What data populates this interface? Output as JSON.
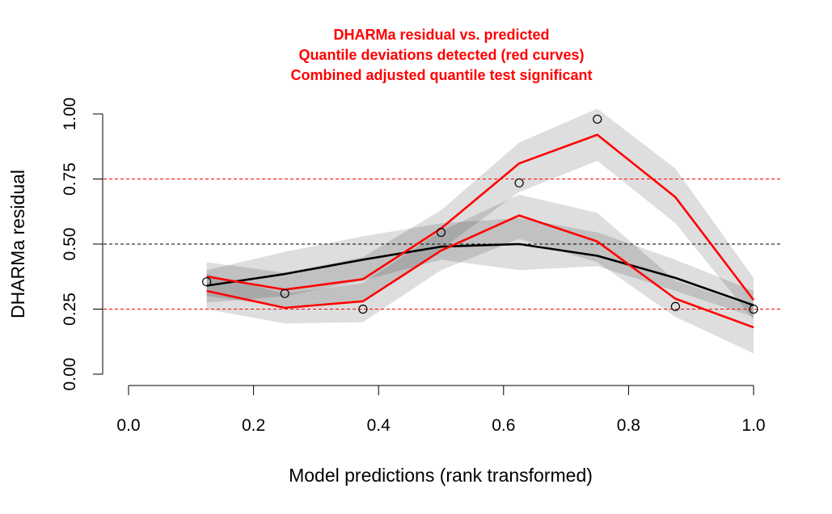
{
  "chart_data": {
    "type": "scatter",
    "title_lines": [
      "DHARMa residual vs. predicted",
      "Quantile deviations detected (red curves)",
      "Combined adjusted quantile test significant"
    ],
    "title_color": "#ff0000",
    "xlabel": "Model predictions (rank transformed)",
    "ylabel": "DHARMa residual",
    "xlim": [
      0,
      1
    ],
    "ylim": [
      0,
      1
    ],
    "x_ticks": [
      "0.0",
      "0.2",
      "0.4",
      "0.6",
      "0.8",
      "1.0"
    ],
    "y_ticks": [
      "0.00",
      "0.25",
      "0.50",
      "0.75",
      "1.00"
    ],
    "grid": false,
    "reference_lines": [
      {
        "y": 0.25,
        "color": "#ff0000",
        "dashed": true
      },
      {
        "y": 0.5,
        "color": "#000000",
        "dashed": true
      },
      {
        "y": 0.75,
        "color": "#ff0000",
        "dashed": true
      }
    ],
    "points": {
      "x": [
        0.125,
        0.25,
        0.375,
        0.5,
        0.625,
        0.75,
        0.875,
        1.0
      ],
      "y": [
        0.355,
        0.31,
        0.25,
        0.545,
        0.735,
        0.98,
        0.26,
        0.25
      ]
    },
    "series": [
      {
        "color": "#000000",
        "x": [
          0.125,
          0.25,
          0.375,
          0.5,
          0.625,
          0.75,
          0.875,
          1.0
        ],
        "y": [
          0.34,
          0.385,
          0.44,
          0.49,
          0.5,
          0.455,
          0.37,
          0.265
        ],
        "band_lower": [
          0.275,
          0.3,
          0.36,
          0.44,
          0.4,
          0.415,
          0.32,
          0.22
        ],
        "band_upper": [
          0.4,
          0.47,
          0.53,
          0.58,
          0.6,
          0.545,
          0.44,
          0.32
        ]
      },
      {
        "color": "#ff0000",
        "x": [
          0.125,
          0.25,
          0.375,
          0.5,
          0.625,
          0.75,
          0.875,
          1.0
        ],
        "y": [
          0.375,
          0.325,
          0.365,
          0.56,
          0.81,
          0.92,
          0.68,
          0.285
        ],
        "band_lower": [
          0.3,
          0.26,
          0.28,
          0.48,
          0.7,
          0.82,
          0.58,
          0.21
        ],
        "band_upper": [
          0.43,
          0.39,
          0.45,
          0.63,
          0.89,
          1.02,
          0.79,
          0.37
        ]
      },
      {
        "color": "#ff0000",
        "x": [
          0.125,
          0.25,
          0.375,
          0.5,
          0.625,
          0.75,
          0.875,
          1.0
        ],
        "y": [
          0.32,
          0.255,
          0.28,
          0.475,
          0.61,
          0.51,
          0.29,
          0.18
        ],
        "band_lower": [
          0.25,
          0.195,
          0.2,
          0.4,
          0.52,
          0.43,
          0.22,
          0.08
        ],
        "band_upper": [
          0.385,
          0.31,
          0.35,
          0.55,
          0.69,
          0.62,
          0.36,
          0.26
        ]
      }
    ]
  }
}
